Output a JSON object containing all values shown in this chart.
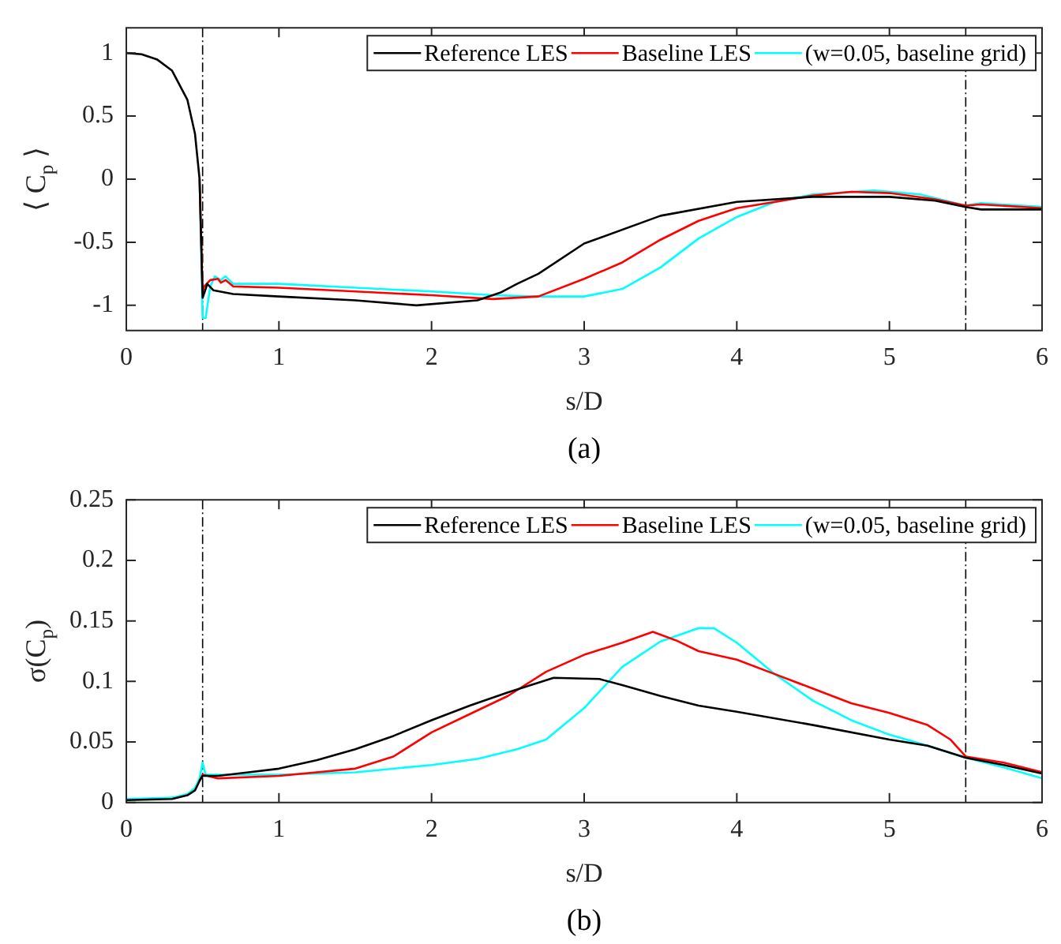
{
  "chart_data": [
    {
      "type": "line",
      "xlabel": "s/D",
      "ylabel": "⟨ C$_{p}$ ⟩",
      "annotations": [
        "(a)"
      ],
      "xlim": [
        0,
        6
      ],
      "xticks": [
        0,
        1,
        2,
        3,
        4,
        5,
        6
      ],
      "ylim": [
        -1.2,
        1.2
      ],
      "yticks": [
        -1,
        -0.5,
        0,
        0.5,
        1
      ],
      "grid": false,
      "legend": "top right",
      "marker": "none",
      "line_style": "solid",
      "ref_lines": [
        {
          "axis": "x",
          "value": 0.5,
          "color": "#000000",
          "line_style": "dashed"
        },
        {
          "axis": "x",
          "value": 5.5,
          "color": "#000000",
          "line_style": "dashed"
        }
      ],
      "series": [
        {
          "name": "Reference LES",
          "color": "#000000",
          "x": [
            0,
            0.1,
            0.2,
            0.3,
            0.4,
            0.45,
            0.48,
            0.5,
            0.52,
            0.53,
            0.57,
            0.7,
            1,
            1.5,
            1.9,
            2.3,
            2.45,
            2.56,
            2.7,
            3,
            3.5,
            4,
            4.5,
            5,
            5.3,
            5.5,
            5.6,
            6
          ],
          "values": [
            1,
            0.99,
            0.95,
            0.86,
            0.63,
            0.36,
            0,
            -0.94,
            -0.87,
            -0.83,
            -0.88,
            -0.91,
            -0.93,
            -0.96,
            -1,
            -0.96,
            -0.9,
            -0.83,
            -0.75,
            -0.51,
            -0.29,
            -0.18,
            -0.14,
            -0.14,
            -0.17,
            -0.22,
            -0.24,
            -0.24
          ]
        },
        {
          "name": "Baseline LES",
          "color": "#ff0000",
          "x": [
            0.48,
            0.5,
            0.51,
            0.55,
            0.6,
            0.62,
            0.65,
            0.7,
            1,
            1.5,
            2,
            2.4,
            2.7,
            3,
            3.25,
            3.5,
            3.75,
            4,
            4.5,
            4.75,
            5,
            5.3,
            5.5,
            5.6,
            6
          ],
          "values": [
            0,
            -0.9,
            -0.85,
            -0.8,
            -0.79,
            -0.82,
            -0.8,
            -0.85,
            -0.86,
            -0.89,
            -0.92,
            -0.95,
            -0.93,
            -0.79,
            -0.66,
            -0.48,
            -0.33,
            -0.23,
            -0.13,
            -0.1,
            -0.11,
            -0.16,
            -0.21,
            -0.2,
            -0.23
          ]
        },
        {
          "name": "(w=0.05, baseline grid)",
          "color": "#00ffff",
          "x": [
            0.48,
            0.5,
            0.52,
            0.55,
            0.58,
            0.62,
            0.65,
            0.7,
            1,
            1.5,
            2,
            2.4,
            2.7,
            3,
            3.25,
            3.5,
            3.75,
            4,
            4.25,
            4.5,
            4.9,
            5.2,
            5.5,
            5.6,
            6
          ],
          "values": [
            0,
            -1.1,
            -1.1,
            -0.85,
            -0.77,
            -0.8,
            -0.77,
            -0.83,
            -0.83,
            -0.86,
            -0.89,
            -0.92,
            -0.93,
            -0.93,
            -0.87,
            -0.7,
            -0.47,
            -0.3,
            -0.18,
            -0.12,
            -0.09,
            -0.12,
            -0.21,
            -0.19,
            -0.22
          ]
        }
      ]
    },
    {
      "type": "line",
      "xlabel": "s/D",
      "ylabel": "σ(C$_{p}$)",
      "annotations": [
        "(b)"
      ],
      "xlim": [
        0,
        6
      ],
      "xticks": [
        0,
        1,
        2,
        3,
        4,
        5,
        6
      ],
      "ylim": [
        0,
        0.25
      ],
      "yticks": [
        0,
        0.05,
        0.1,
        0.15,
        0.2,
        0.25
      ],
      "grid": false,
      "legend": "top right",
      "marker": "none",
      "line_style": "solid",
      "ref_lines": [
        {
          "axis": "x",
          "value": 0.5,
          "color": "#000000",
          "line_style": "dashed"
        },
        {
          "axis": "x",
          "value": 5.5,
          "color": "#000000",
          "line_style": "dashed"
        }
      ],
      "series": [
        {
          "name": "Reference LES",
          "color": "#000000",
          "x": [
            0,
            0.3,
            0.4,
            0.45,
            0.48,
            0.5,
            0.6,
            0.8,
            1,
            1.25,
            1.5,
            1.75,
            2,
            2.25,
            2.5,
            2.8,
            3.1,
            3.25,
            3.5,
            3.75,
            4,
            4.5,
            5,
            5.25,
            5.5,
            5.75,
            6
          ],
          "values": [
            0.002,
            0.003,
            0.006,
            0.01,
            0.018,
            0.022,
            0.022,
            0.025,
            0.028,
            0.035,
            0.044,
            0.055,
            0.068,
            0.08,
            0.091,
            0.103,
            0.102,
            0.097,
            0.088,
            0.08,
            0.075,
            0.064,
            0.052,
            0.047,
            0.037,
            0.031,
            0.024
          ]
        },
        {
          "name": "Baseline LES",
          "color": "#ff0000",
          "x": [
            0.48,
            0.5,
            0.6,
            1,
            1.5,
            1.75,
            2,
            2.25,
            2.5,
            2.75,
            3,
            3.25,
            3.45,
            3.6,
            3.75,
            4,
            4.25,
            4.5,
            4.75,
            5,
            5.25,
            5.4,
            5.5,
            5.75,
            6
          ],
          "values": [
            0.018,
            0.023,
            0.02,
            0.022,
            0.028,
            0.038,
            0.058,
            0.073,
            0.088,
            0.108,
            0.122,
            0.132,
            0.141,
            0.134,
            0.125,
            0.118,
            0.106,
            0.094,
            0.082,
            0.074,
            0.064,
            0.052,
            0.038,
            0.033,
            0.025
          ]
        },
        {
          "name": "(w=0.05, baseline grid)",
          "color": "#00ffff",
          "x": [
            0,
            0.3,
            0.4,
            0.45,
            0.48,
            0.5,
            0.52,
            1,
            1.5,
            2,
            2.3,
            2.56,
            2.75,
            3,
            3.25,
            3.5,
            3.75,
            3.85,
            4,
            4.25,
            4.5,
            4.75,
            5,
            5.25,
            5.5,
            5.75,
            6
          ],
          "values": [
            0.003,
            0.004,
            0.007,
            0.012,
            0.02,
            0.033,
            0.023,
            0.023,
            0.025,
            0.031,
            0.036,
            0.044,
            0.052,
            0.078,
            0.112,
            0.133,
            0.144,
            0.144,
            0.132,
            0.106,
            0.084,
            0.068,
            0.056,
            0.047,
            0.037,
            0.029,
            0.02
          ]
        }
      ]
    }
  ]
}
